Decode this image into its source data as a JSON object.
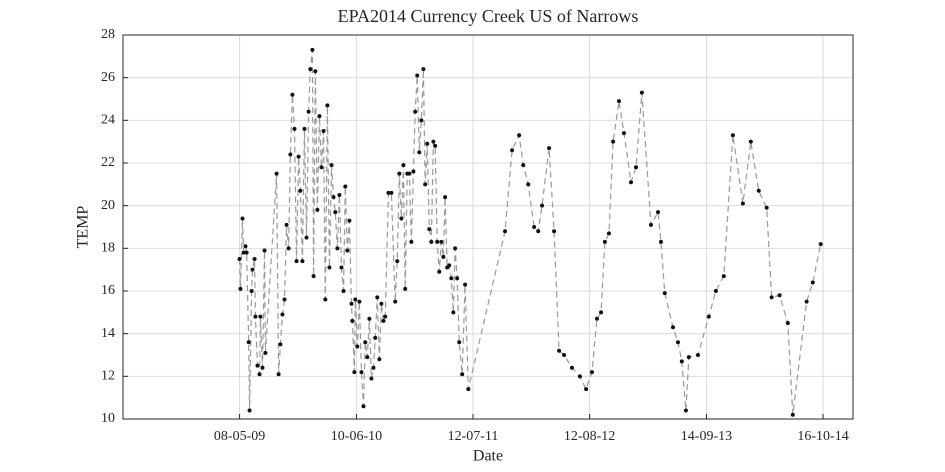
{
  "chart_data": {
    "type": "line",
    "title": "EPA2014 Currency Creek US of Narrows",
    "x_label": "Date",
    "y_label": "TEMP",
    "x": [
      "2009-05-08",
      "2009-05-11",
      "2009-05-18",
      "2009-05-22",
      "2009-05-28",
      "2009-06-01",
      "2009-06-08",
      "2009-06-11",
      "2009-06-18",
      "2009-06-21",
      "2009-06-28",
      "2009-07-01",
      "2009-07-08",
      "2009-07-15",
      "2009-07-18",
      "2009-07-25",
      "2009-08-01",
      "2009-08-04",
      "2009-09-11",
      "2009-09-18",
      "2009-09-24",
      "2009-10-01",
      "2009-10-08",
      "2009-10-15",
      "2009-10-22",
      "2009-10-28",
      "2009-11-04",
      "2009-11-11",
      "2009-11-18",
      "2009-11-25",
      "2009-12-01",
      "2009-12-08",
      "2009-12-15",
      "2009-12-22",
      "2009-12-29",
      "2010-01-04",
      "2010-01-11",
      "2010-01-15",
      "2010-01-21",
      "2010-01-28",
      "2010-02-04",
      "2010-02-11",
      "2010-02-18",
      "2010-02-24",
      "2010-03-03",
      "2010-03-10",
      "2010-03-17",
      "2010-03-24",
      "2010-03-30",
      "2010-04-06",
      "2010-04-13",
      "2010-04-20",
      "2010-04-27",
      "2010-05-03",
      "2010-05-10",
      "2010-05-17",
      "2010-05-24",
      "2010-05-27",
      "2010-06-03",
      "2010-06-06",
      "2010-06-13",
      "2010-06-20",
      "2010-06-27",
      "2010-07-04",
      "2010-07-10",
      "2010-07-17",
      "2010-07-24",
      "2010-07-31",
      "2010-08-07",
      "2010-08-13",
      "2010-08-20",
      "2010-08-27",
      "2010-09-03",
      "2010-09-10",
      "2010-09-16",
      "2010-09-27",
      "2010-10-07",
      "2010-10-20",
      "2010-10-27",
      "2010-11-03",
      "2010-11-10",
      "2010-11-17",
      "2010-11-23",
      "2010-11-30",
      "2010-12-07",
      "2010-12-14",
      "2010-12-21",
      "2010-12-27",
      "2011-01-03",
      "2011-01-10",
      "2011-01-17",
      "2011-01-24",
      "2011-01-30",
      "2011-02-06",
      "2011-02-13",
      "2011-02-20",
      "2011-02-27",
      "2011-03-05",
      "2011-03-12",
      "2011-03-19",
      "2011-03-26",
      "2011-04-02",
      "2011-04-08",
      "2011-04-15",
      "2011-04-22",
      "2011-04-29",
      "2011-05-06",
      "2011-05-12",
      "2011-05-19",
      "2011-05-26",
      "2011-06-05",
      "2011-06-15",
      "2011-06-26",
      "2011-10-29",
      "2011-11-22",
      "2011-12-16",
      "2011-12-30",
      "2012-01-16",
      "2012-02-05",
      "2012-02-19",
      "2012-03-03",
      "2012-03-27",
      "2012-04-13",
      "2012-04-30",
      "2012-05-17",
      "2012-06-13",
      "2012-07-10",
      "2012-07-31",
      "2012-08-20",
      "2012-09-06",
      "2012-09-20",
      "2012-10-03",
      "2012-10-17",
      "2012-10-31",
      "2012-11-20",
      "2012-12-07",
      "2012-12-31",
      "2013-01-17",
      "2013-02-06",
      "2013-03-09",
      "2013-04-02",
      "2013-04-12",
      "2013-04-25",
      "2013-05-23",
      "2013-06-09",
      "2013-06-22",
      "2013-07-06",
      "2013-07-16",
      "2013-08-16",
      "2013-09-22",
      "2013-10-16",
      "2013-11-12",
      "2013-12-13",
      "2014-01-16",
      "2014-02-12",
      "2014-03-11",
      "2014-04-07",
      "2014-04-24",
      "2014-05-21",
      "2014-06-18",
      "2014-07-05",
      "2014-08-21",
      "2014-09-11",
      "2014-10-08"
    ],
    "values": [
      17.5,
      16.1,
      19.4,
      17.8,
      18.1,
      17.8,
      13.6,
      10.4,
      16.0,
      17.0,
      17.5,
      14.8,
      12.5,
      12.1,
      14.8,
      12.4,
      17.9,
      13.1,
      21.5,
      12.1,
      13.5,
      14.9,
      15.6,
      19.1,
      18.0,
      22.4,
      25.2,
      23.6,
      17.4,
      22.3,
      20.7,
      17.4,
      23.6,
      18.5,
      24.4,
      26.4,
      27.3,
      16.7,
      26.3,
      19.8,
      24.2,
      21.8,
      23.5,
      15.6,
      24.7,
      17.1,
      21.9,
      20.4,
      19.7,
      18.0,
      20.5,
      17.1,
      16.0,
      20.9,
      17.9,
      19.3,
      15.4,
      14.6,
      12.2,
      15.6,
      13.4,
      15.5,
      12.2,
      10.6,
      13.6,
      12.9,
      14.7,
      11.9,
      12.4,
      13.8,
      15.7,
      12.8,
      15.4,
      14.6,
      14.8,
      20.6,
      20.6,
      15.5,
      17.4,
      21.5,
      19.4,
      21.9,
      16.1,
      21.5,
      21.5,
      18.3,
      21.6,
      24.4,
      26.1,
      22.5,
      24.0,
      26.4,
      21.0,
      22.9,
      18.9,
      18.3,
      23.0,
      22.8,
      18.3,
      16.9,
      18.3,
      17.6,
      20.4,
      17.1,
      17.2,
      16.6,
      15.0,
      18.0,
      16.6,
      13.6,
      12.1,
      16.3,
      11.4,
      18.8,
      22.6,
      23.3,
      21.9,
      21.0,
      19.0,
      18.8,
      20.0,
      22.7,
      18.8,
      13.2,
      13.0,
      12.4,
      12.0,
      11.4,
      12.2,
      14.7,
      15.0,
      18.3,
      18.7,
      23.0,
      24.9,
      23.4,
      21.1,
      21.8,
      25.3,
      19.1,
      19.7,
      18.3,
      15.9,
      14.3,
      13.6,
      12.7,
      10.4,
      12.9,
      13.0,
      14.8,
      16.0,
      16.7,
      23.3,
      20.1,
      23.0,
      20.7,
      19.9,
      15.7,
      15.8,
      14.5,
      10.2,
      15.5,
      16.4,
      18.2
    ],
    "color": "#999999",
    "marker_color": "#111111",
    "xlim": [
      "2008-04-06",
      "2015-01-26"
    ],
    "xticks": [
      {
        "value": "2009-05-08",
        "label": "08-05-09"
      },
      {
        "value": "2010-06-10",
        "label": "10-06-10"
      },
      {
        "value": "2011-07-12",
        "label": "12-07-11"
      },
      {
        "value": "2012-08-12",
        "label": "12-08-12"
      },
      {
        "value": "2013-09-14",
        "label": "14-09-13"
      },
      {
        "value": "2014-10-16",
        "label": "16-10-14"
      }
    ],
    "ylim": [
      10,
      28
    ],
    "yticks": [
      10,
      12,
      14,
      16,
      18,
      20,
      22,
      24,
      26,
      28
    ],
    "grid": true
  }
}
